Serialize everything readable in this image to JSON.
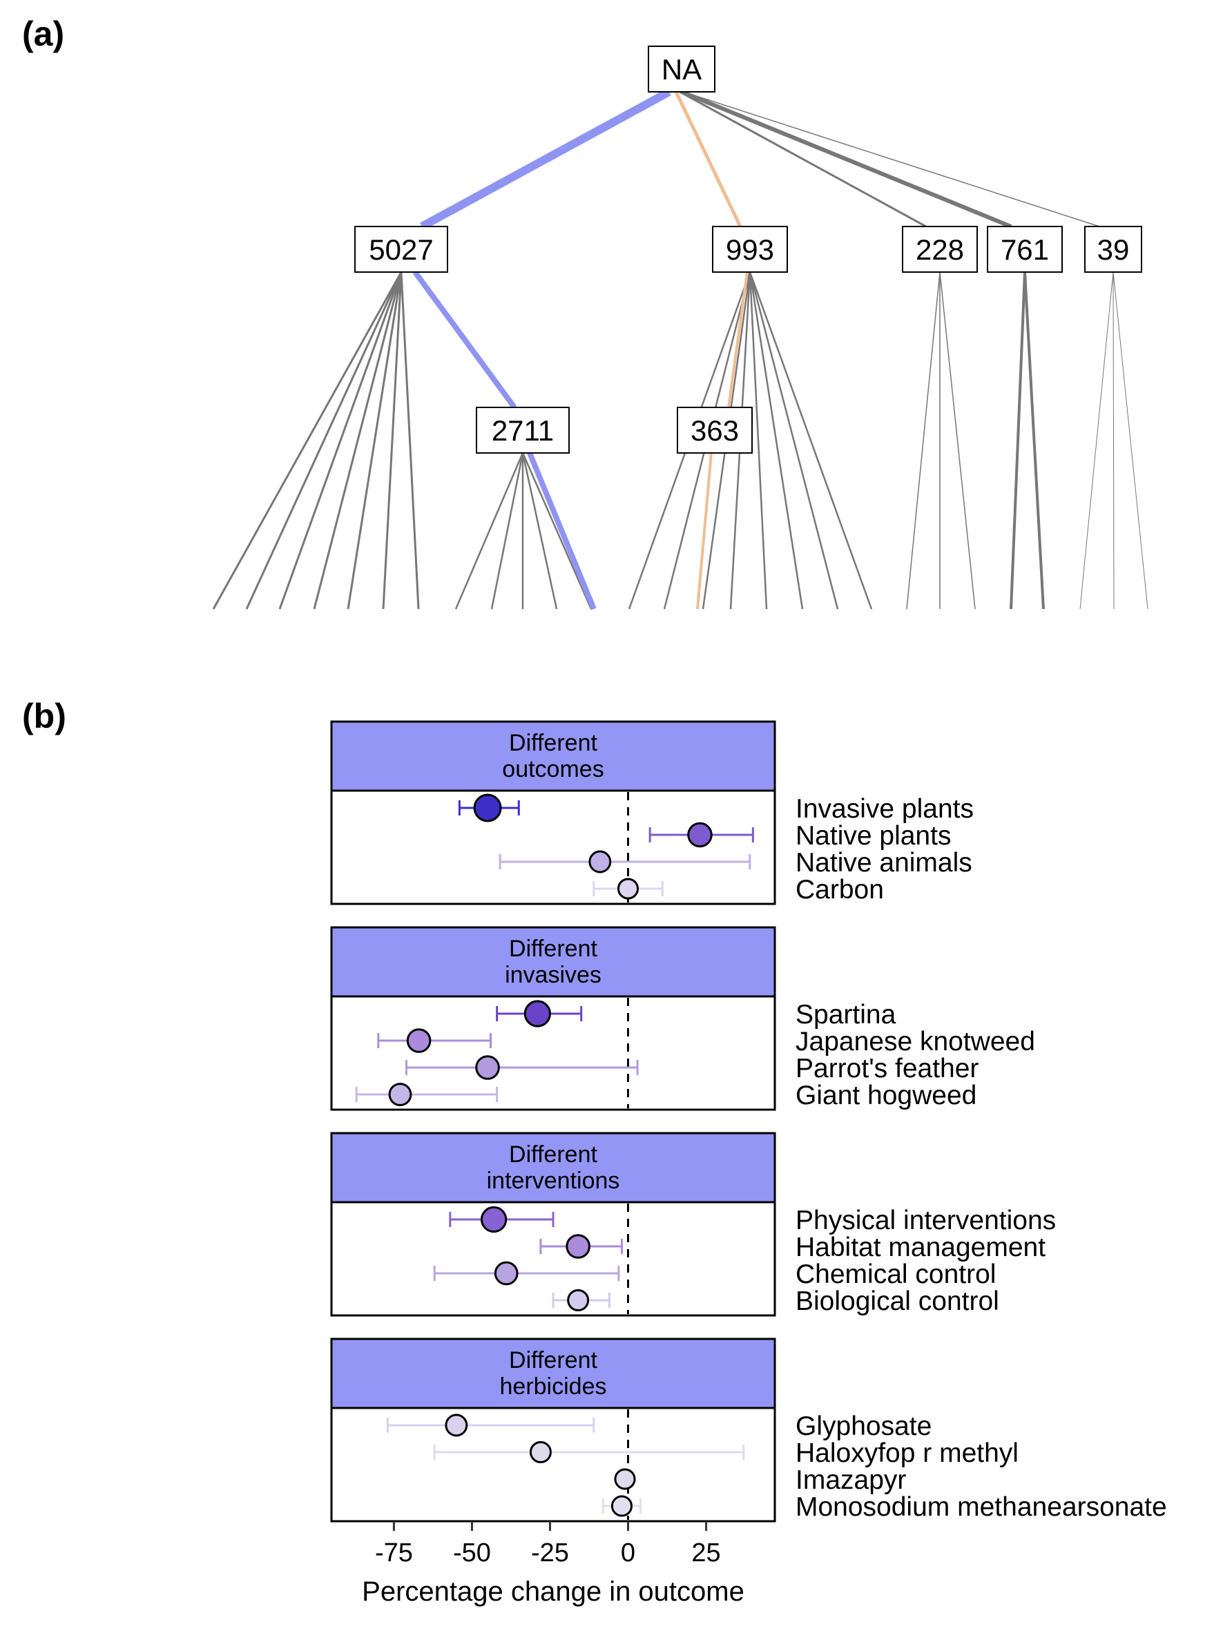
{
  "panel_labels": {
    "a": "(a)",
    "b": "(b)"
  },
  "colors": {
    "facet_strip": "#9396f5",
    "tree_selected": "#8f94f2",
    "tree_alternate": "#eebe93",
    "tree_other": "#777777"
  },
  "tree": {
    "root": {
      "label": "NA"
    },
    "level1": [
      {
        "label": "5027",
        "path": "selected"
      },
      {
        "label": "993",
        "path": "alternate"
      },
      {
        "label": "228",
        "path": "other"
      },
      {
        "label": "761",
        "path": "other"
      },
      {
        "label": "39",
        "path": "other"
      }
    ],
    "level2": [
      {
        "label": "2711",
        "parent": "5027",
        "path": "selected"
      },
      {
        "label": "363",
        "parent": "993",
        "path": "alternate"
      }
    ]
  },
  "chart_data": {
    "type": "scatter",
    "subtype": "forest-plot",
    "xlabel": "Percentage change in outcome",
    "xlim": [
      -95,
      47
    ],
    "xticks": [
      -75,
      -50,
      -25,
      0,
      25
    ],
    "tick_labels": [
      "-75",
      "-50",
      "-25",
      "0",
      "25"
    ],
    "reference_line": 0,
    "facets": [
      {
        "title": "Different\noutcomes",
        "rows": [
          {
            "label": "Invasive plants",
            "estimate": -45,
            "lower": -54,
            "upper": -35,
            "color": "#3c2fc8",
            "weight": 1.0
          },
          {
            "label": "Native plants",
            "estimate": 23,
            "lower": 7,
            "upper": 40,
            "color": "#7e5bd0",
            "weight": 0.75
          },
          {
            "label": "Native animals",
            "estimate": -9,
            "lower": -41,
            "upper": 39,
            "color": "#c0b0e6",
            "weight": 0.55
          },
          {
            "label": "Carbon",
            "estimate": 0,
            "lower": -11,
            "upper": 11,
            "color": "#dcd6ef",
            "weight": 0.45
          }
        ]
      },
      {
        "title": "Different\ninvasives",
        "rows": [
          {
            "label": "Spartina",
            "estimate": -29,
            "lower": -42,
            "upper": -15,
            "color": "#6a44c8",
            "weight": 0.9
          },
          {
            "label": "Japanese knotweed",
            "estimate": -67,
            "lower": -80,
            "upper": -44,
            "color": "#a98ddc",
            "weight": 0.7
          },
          {
            "label": "Parrot's feather",
            "estimate": -45,
            "lower": -71,
            "upper": 3,
            "color": "#b29ade",
            "weight": 0.7
          },
          {
            "label": "Giant hogweed",
            "estimate": -73,
            "lower": -87,
            "upper": -42,
            "color": "#c4b7e8",
            "weight": 0.6
          }
        ]
      },
      {
        "title": "Different\ninterventions",
        "rows": [
          {
            "label": "Physical interventions",
            "estimate": -43,
            "lower": -57,
            "upper": -24,
            "color": "#8762d2",
            "weight": 0.85
          },
          {
            "label": "Habitat management",
            "estimate": -16,
            "lower": -28,
            "upper": -2,
            "color": "#a98ddc",
            "weight": 0.7
          },
          {
            "label": "Chemical control",
            "estimate": -39,
            "lower": -62,
            "upper": -3,
            "color": "#b8a4e0",
            "weight": 0.65
          },
          {
            "label": "Biological control",
            "estimate": -16,
            "lower": -24,
            "upper": -6,
            "color": "#d3cbed",
            "weight": 0.5
          }
        ]
      },
      {
        "title": "Different\nherbicides",
        "rows": [
          {
            "label": "Glyphosate",
            "estimate": -55,
            "lower": -77,
            "upper": -11,
            "color": "#d8d2ef",
            "weight": 0.55
          },
          {
            "label": "Haloxyfop r methyl",
            "estimate": -28,
            "lower": -62,
            "upper": 37,
            "color": "#dedbec",
            "weight": 0.5
          },
          {
            "label": "Imazapyr",
            "estimate": -1,
            "lower": -3,
            "upper": 0,
            "color": "#dedbec",
            "weight": 0.45
          },
          {
            "label": "Monosodium methanearsonate",
            "estimate": -2,
            "lower": -8,
            "upper": 4,
            "color": "#e2dff0",
            "weight": 0.45
          }
        ]
      }
    ]
  }
}
